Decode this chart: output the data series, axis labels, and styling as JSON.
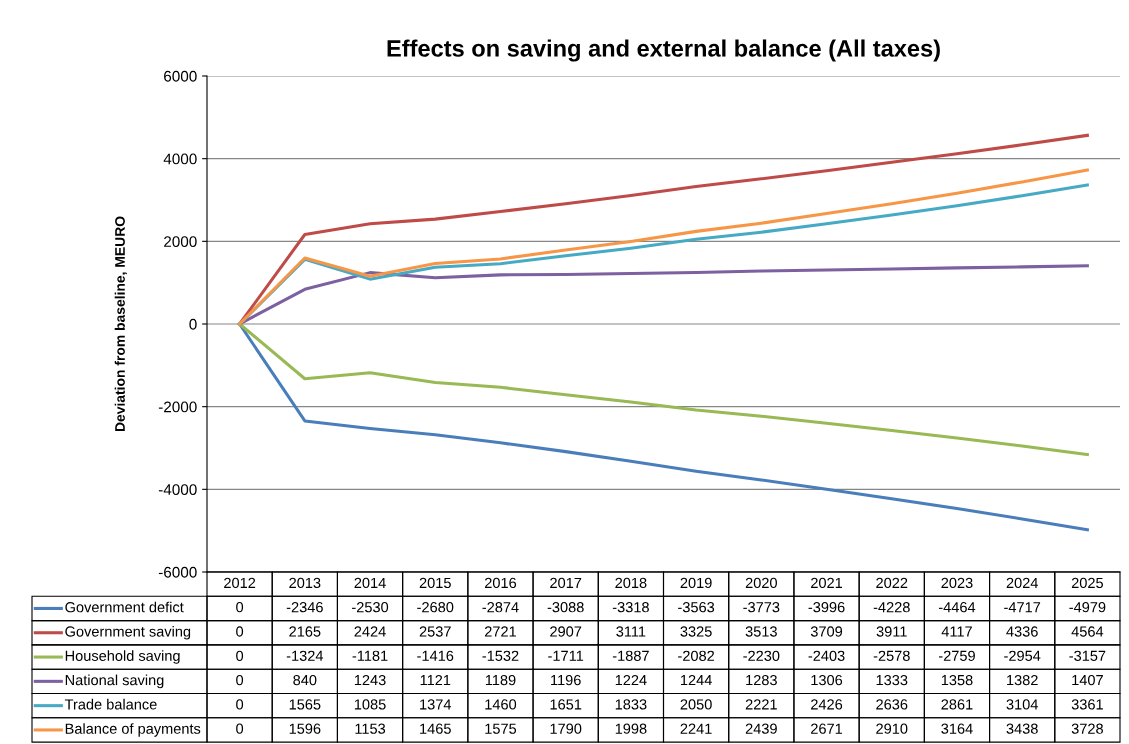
{
  "chart_data": {
    "type": "line",
    "title": "Effects on saving and external balance (All taxes)",
    "ylabel": "Deviation from baseline, MEURO",
    "categories": [
      "2012",
      "2013",
      "2014",
      "2015",
      "2016",
      "2017",
      "2018",
      "2019",
      "2020",
      "2021",
      "2022",
      "2023",
      "2024",
      "2025"
    ],
    "series": [
      {
        "name": "Government defict",
        "color": "#4a7ebb",
        "values": [
          0,
          -2346,
          -2530,
          -2680,
          -2874,
          -3088,
          -3318,
          -3563,
          -3773,
          -3996,
          -4228,
          -4464,
          -4717,
          -4979
        ]
      },
      {
        "name": "Government saving",
        "color": "#be4b48",
        "values": [
          0,
          2165,
          2424,
          2537,
          2721,
          2907,
          3111,
          3325,
          3513,
          3709,
          3911,
          4117,
          4336,
          4564
        ]
      },
      {
        "name": "Household saving",
        "color": "#98b954",
        "values": [
          0,
          -1324,
          -1181,
          -1416,
          -1532,
          -1711,
          -1887,
          -2082,
          -2230,
          -2403,
          -2578,
          -2759,
          -2954,
          -3157
        ]
      },
      {
        "name": "National saving",
        "color": "#7d60a0",
        "values": [
          0,
          840,
          1243,
          1121,
          1189,
          1196,
          1224,
          1244,
          1283,
          1306,
          1333,
          1358,
          1382,
          1407
        ]
      },
      {
        "name": "Trade balance",
        "color": "#46aac5",
        "values": [
          0,
          1565,
          1085,
          1374,
          1460,
          1651,
          1833,
          2050,
          2221,
          2426,
          2636,
          2861,
          3104,
          3361
        ]
      },
      {
        "name": "Balance of payments",
        "color": "#f79646",
        "values": [
          0,
          1596,
          1153,
          1465,
          1575,
          1790,
          1998,
          2241,
          2439,
          2671,
          2910,
          3164,
          3438,
          3728
        ]
      }
    ],
    "ylim": [
      -6000,
      6000
    ],
    "yticks": [
      -6000,
      -4000,
      -2000,
      0,
      2000,
      4000,
      6000
    ],
    "grid": "y",
    "legend": "bottom left",
    "data_labels": true,
    "marker": "none",
    "line_style": "solid"
  }
}
